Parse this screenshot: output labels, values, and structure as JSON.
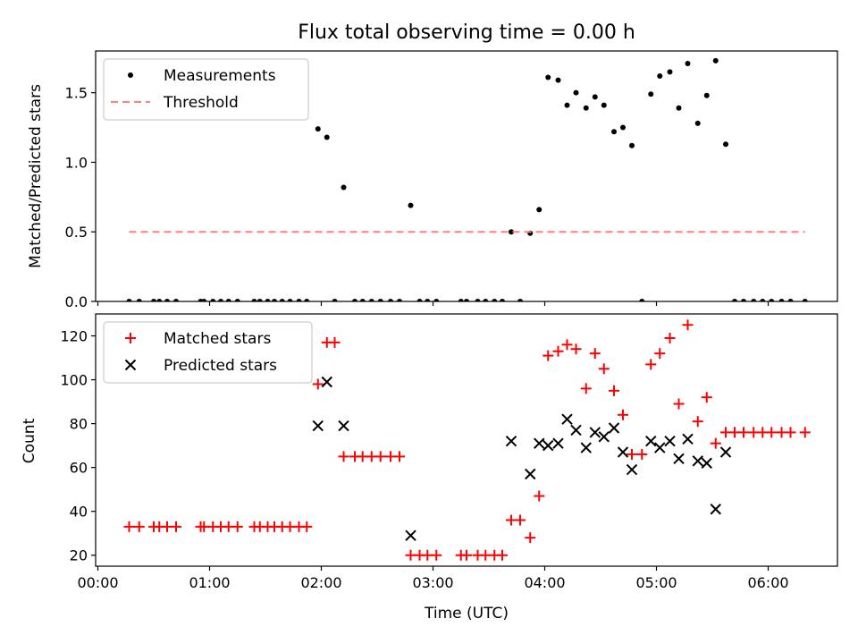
{
  "chart_data": [
    {
      "type": "scatter",
      "title": "Flux total observing time = 0.00 h",
      "ylabel": "Matched/Predicted stars",
      "xlabel": "",
      "xlim": [
        -0.02,
        6.62
      ],
      "ylim": [
        0.0,
        1.8
      ],
      "yticks": [
        "0.0",
        "0.5",
        "1.0",
        "1.5"
      ],
      "ytick_values": [
        0.0,
        0.5,
        1.0,
        1.5
      ],
      "legend": {
        "placement": "upper-left",
        "entries": [
          "Measurements",
          "Threshold"
        ]
      },
      "colors": {
        "measurements": "#000000",
        "threshold": "#ff8080"
      },
      "series": [
        {
          "name": "Measurements",
          "marker": "dot",
          "x": [
            0.28,
            0.37,
            0.5,
            0.55,
            0.62,
            0.7,
            0.92,
            0.95,
            1.03,
            1.1,
            1.17,
            1.25,
            1.4,
            1.45,
            1.52,
            1.58,
            1.65,
            1.72,
            1.8,
            1.87,
            1.97,
            2.05,
            2.12,
            2.2,
            2.3,
            2.37,
            2.45,
            2.53,
            2.62,
            2.7,
            2.8,
            2.88,
            2.95,
            3.03,
            3.25,
            3.3,
            3.4,
            3.47,
            3.55,
            3.62,
            3.7,
            3.78,
            3.87,
            3.95,
            4.03,
            4.12,
            4.2,
            4.28,
            4.37,
            4.45,
            4.53,
            4.62,
            4.7,
            4.78,
            4.87,
            4.95,
            5.03,
            5.12,
            5.2,
            5.28,
            5.37,
            5.45,
            5.53,
            5.62,
            5.7,
            5.78,
            5.87,
            5.95,
            6.03,
            6.12,
            6.2,
            6.33
          ],
          "y": [
            0,
            0,
            0,
            0,
            0,
            0,
            0,
            0,
            0,
            0,
            0,
            0,
            0,
            0,
            0,
            0,
            0,
            0,
            0,
            0,
            1.24,
            1.18,
            0,
            0.82,
            0,
            0,
            0,
            0,
            0,
            0,
            0.69,
            0,
            0,
            0,
            0,
            0,
            0,
            0,
            0,
            0,
            0.5,
            0,
            0.49,
            0.66,
            1.61,
            1.59,
            1.41,
            1.5,
            1.39,
            1.47,
            1.41,
            1.22,
            1.25,
            1.12,
            0,
            1.49,
            1.62,
            1.65,
            1.39,
            1.71,
            1.28,
            1.48,
            1.73,
            1.13,
            0,
            0,
            0,
            0,
            0,
            0,
            0,
            0
          ]
        },
        {
          "name": "Threshold",
          "marker": "dashed-line",
          "x": [
            0.28,
            6.33
          ],
          "y": [
            0.5,
            0.5
          ]
        }
      ]
    },
    {
      "type": "scatter",
      "title": "",
      "ylabel": "Count",
      "xlabel": "Time (UTC)",
      "xlim": [
        -0.02,
        6.62
      ],
      "ylim": [
        15,
        130
      ],
      "yticks": [
        "20",
        "40",
        "60",
        "80",
        "100",
        "120"
      ],
      "ytick_values": [
        20,
        40,
        60,
        80,
        100,
        120
      ],
      "xticks": [
        "00:00",
        "01:00",
        "02:00",
        "03:00",
        "04:00",
        "05:00",
        "06:00"
      ],
      "xtick_values": [
        0,
        1,
        2,
        3,
        4,
        5,
        6
      ],
      "legend": {
        "placement": "upper-left",
        "entries": [
          "Matched stars",
          "Predicted stars"
        ]
      },
      "colors": {
        "matched": "#ff0000",
        "predicted": "#000000"
      },
      "series": [
        {
          "name": "Matched stars",
          "marker": "plus",
          "x": [
            0.28,
            0.37,
            0.5,
            0.55,
            0.62,
            0.7,
            0.92,
            0.95,
            1.03,
            1.1,
            1.17,
            1.25,
            1.4,
            1.45,
            1.52,
            1.58,
            1.65,
            1.72,
            1.8,
            1.87,
            1.97,
            2.05,
            2.12,
            2.2,
            2.3,
            2.37,
            2.45,
            2.53,
            2.62,
            2.7,
            2.8,
            2.88,
            2.95,
            3.03,
            3.25,
            3.3,
            3.4,
            3.47,
            3.55,
            3.62,
            3.7,
            3.78,
            3.87,
            3.95,
            4.03,
            4.12,
            4.2,
            4.28,
            4.37,
            4.45,
            4.53,
            4.62,
            4.7,
            4.78,
            4.87,
            4.95,
            5.03,
            5.12,
            5.2,
            5.28,
            5.37,
            5.45,
            5.53,
            5.62,
            5.7,
            5.78,
            5.87,
            5.95,
            6.03,
            6.12,
            6.2,
            6.33
          ],
          "y": [
            33,
            33,
            33,
            33,
            33,
            33,
            33,
            33,
            33,
            33,
            33,
            33,
            33,
            33,
            33,
            33,
            33,
            33,
            33,
            33,
            98,
            117,
            117,
            65,
            65,
            65,
            65,
            65,
            65,
            65,
            20,
            20,
            20,
            20,
            20,
            20,
            20,
            20,
            20,
            20,
            36,
            36,
            28,
            47,
            111,
            113,
            116,
            114,
            96,
            112,
            105,
            95,
            84,
            66,
            66,
            107,
            112,
            119,
            89,
            125,
            81,
            92,
            71,
            76,
            76,
            76,
            76,
            76,
            76,
            76,
            76,
            76
          ]
        },
        {
          "name": "Predicted stars",
          "marker": "x",
          "x": [
            1.97,
            2.05,
            2.2,
            2.8,
            3.7,
            3.87,
            3.95,
            4.03,
            4.12,
            4.2,
            4.28,
            4.37,
            4.45,
            4.53,
            4.62,
            4.7,
            4.78,
            4.95,
            5.03,
            5.12,
            5.2,
            5.28,
            5.37,
            5.45,
            5.53,
            5.62
          ],
          "y": [
            79,
            99,
            79,
            29,
            72,
            57,
            71,
            70,
            71,
            82,
            77,
            69,
            76,
            74,
            78,
            67,
            59,
            72,
            69,
            72,
            64,
            73,
            63,
            62,
            41,
            67
          ]
        }
      ]
    }
  ]
}
